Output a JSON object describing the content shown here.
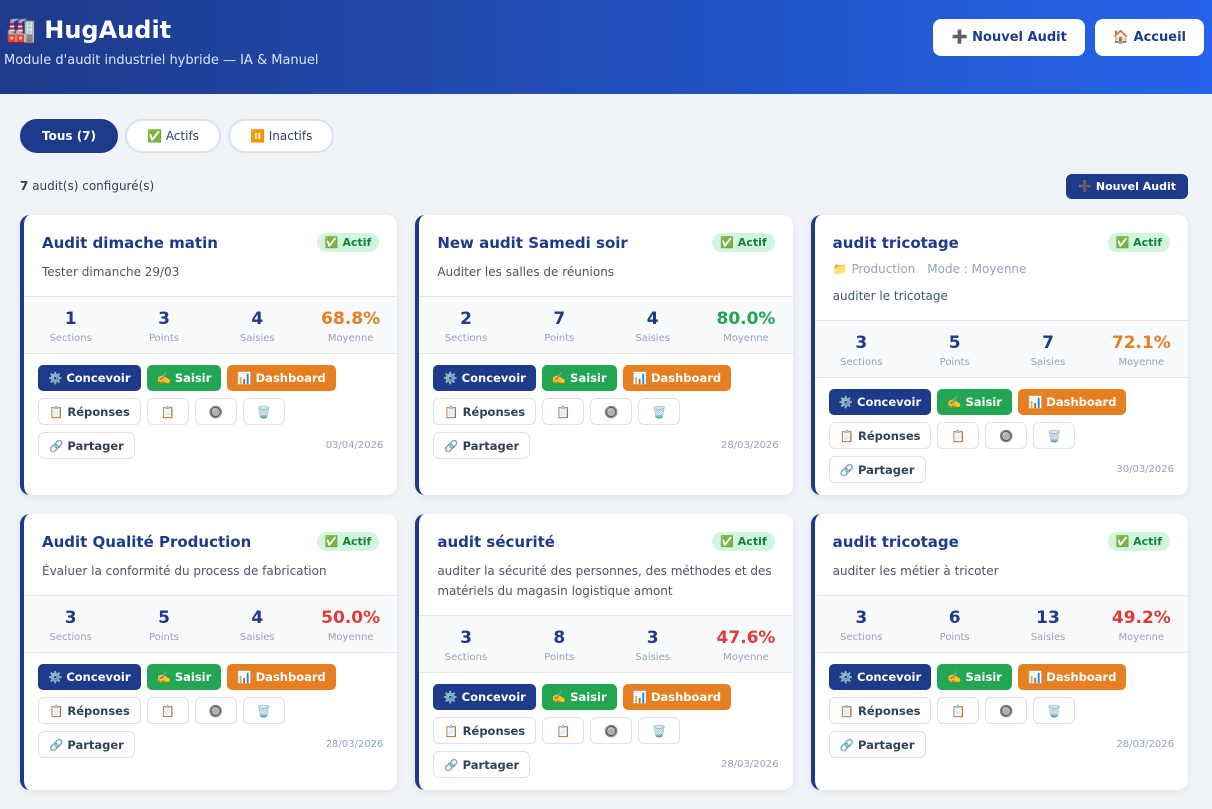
{
  "header": {
    "icon": "🏭",
    "title": "HugAudit",
    "subtitle": "Module d'audit industriel hybride — IA & Manuel",
    "buttons": [
      {
        "icon": "➕",
        "label": "Nouvel Audit"
      },
      {
        "icon": "🏠",
        "label": "Accueil"
      }
    ]
  },
  "filters": [
    {
      "icon": "",
      "label": "Tous (7)",
      "active": true
    },
    {
      "icon": "✅",
      "label": "Actifs",
      "active": false
    },
    {
      "icon": "⏸️",
      "label": "Inactifs",
      "active": false
    }
  ],
  "summary": {
    "count": 7,
    "label": "audit(s) configuré(s)"
  },
  "new_button": {
    "icon": "➕",
    "label": "Nouvel Audit"
  },
  "actions": {
    "primary": [
      {
        "icon": "⚙️",
        "label": "Concevoir",
        "color": "#1e3a8a"
      },
      {
        "icon": "✍️",
        "label": "Saisir",
        "color": "#22a652"
      },
      {
        "icon": "📊",
        "label": "Dashboard",
        "color": "#e67e22"
      }
    ],
    "secondary": [
      {
        "icon": "📋",
        "label": "Réponses"
      },
      {
        "icon": "📋",
        "label": ""
      },
      {
        "icon": "🔘",
        "label": ""
      },
      {
        "icon": "🗑️",
        "label": ""
      }
    ],
    "share": {
      "icon": "🔗",
      "label": "Partager"
    }
  },
  "cards": [
    {
      "title": "Audit dimache matin",
      "status": {
        "icon": "✅",
        "label": "Actif"
      },
      "meta": [],
      "description": "Tester dimanche 29/03",
      "stats": [
        {
          "value": "1",
          "label": "Sections"
        },
        {
          "value": "3",
          "label": "Points"
        },
        {
          "value": "4",
          "label": "Saisies"
        },
        {
          "value": "68.8%",
          "label": "Moyenne",
          "color": "#e67e22"
        }
      ],
      "date": "03/04/2026"
    },
    {
      "title": "New audit Samedi soir",
      "status": {
        "icon": "✅",
        "label": "Actif"
      },
      "meta": [],
      "description": "Auditer les salles de réunions",
      "stats": [
        {
          "value": "2",
          "label": "Sections"
        },
        {
          "value": "7",
          "label": "Points"
        },
        {
          "value": "4",
          "label": "Saisies"
        },
        {
          "value": "80.0%",
          "label": "Moyenne",
          "color": "#22a652"
        }
      ],
      "date": "28/03/2026"
    },
    {
      "title": "audit tricotage",
      "status": {
        "icon": "✅",
        "label": "Actif"
      },
      "meta": [
        {
          "icon": "📁",
          "text": "Production"
        },
        {
          "icon": "",
          "text": "Mode : Moyenne"
        }
      ],
      "description": "auditer le tricotage",
      "stats": [
        {
          "value": "3",
          "label": "Sections"
        },
        {
          "value": "5",
          "label": "Points"
        },
        {
          "value": "7",
          "label": "Saisies"
        },
        {
          "value": "72.1%",
          "label": "Moyenne",
          "color": "#e67e22"
        }
      ],
      "date": "30/03/2026"
    },
    {
      "title": "Audit Qualité Production",
      "status": {
        "icon": "✅",
        "label": "Actif"
      },
      "meta": [],
      "description": "Évaluer la conformité du process de fabrication",
      "stats": [
        {
          "value": "3",
          "label": "Sections"
        },
        {
          "value": "5",
          "label": "Points"
        },
        {
          "value": "4",
          "label": "Saisies"
        },
        {
          "value": "50.0%",
          "label": "Moyenne",
          "color": "#e03b3b"
        }
      ],
      "date": "28/03/2026"
    },
    {
      "title": "audit sécurité",
      "status": {
        "icon": "✅",
        "label": "Actif"
      },
      "meta": [],
      "description": "auditer la sécurité des personnes, des méthodes et des matériels du magasin logistique amont",
      "stats": [
        {
          "value": "3",
          "label": "Sections"
        },
        {
          "value": "8",
          "label": "Points"
        },
        {
          "value": "3",
          "label": "Saisies"
        },
        {
          "value": "47.6%",
          "label": "Moyenne",
          "color": "#e03b3b"
        }
      ],
      "date": "28/03/2026"
    },
    {
      "title": "audit tricotage",
      "status": {
        "icon": "✅",
        "label": "Actif"
      },
      "meta": [],
      "description": "auditer les métier à tricoter",
      "stats": [
        {
          "value": "3",
          "label": "Sections"
        },
        {
          "value": "6",
          "label": "Points"
        },
        {
          "value": "13",
          "label": "Saisies"
        },
        {
          "value": "49.2%",
          "label": "Moyenne",
          "color": "#e03b3b"
        }
      ],
      "date": "28/03/2026"
    }
  ]
}
